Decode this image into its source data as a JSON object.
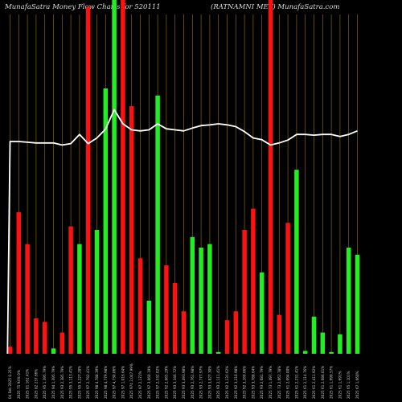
{
  "header": {
    "left": "MunafaSatra  Money Flow  Charts for 520111",
    "right": "(RATNAMNI MET) MunafaSatra.com"
  },
  "colors": {
    "background": "#000000",
    "up": "#22ee22",
    "down": "#ff1111",
    "line": "#ffffff",
    "grid": "#b8860b"
  },
  "chart_data": {
    "type": "bar",
    "title": "",
    "y_scale": "relative money flow (0 = baseline, 100 = top of panel)",
    "series": [
      {
        "name": "money_flow",
        "values": [
          {
            "x": "04 Feb 2025 0.25%",
            "v": 2,
            "color": "down"
          },
          {
            "x": "2025 75 94% 0%",
            "v": 40,
            "color": "down"
          },
          {
            "x": "2025 01 162.41%",
            "v": 31,
            "color": "down"
          },
          {
            "x": "2025 82 237.66%",
            "v": 10,
            "color": "down"
          },
          {
            "x": "2025 95 1,395.79%",
            "v": 9,
            "color": "down"
          },
          {
            "x": "2025 94 1,395.79%",
            "v": 1.5,
            "color": "up"
          },
          {
            "x": "2025 93 2,385.79%",
            "v": 6,
            "color": "down"
          },
          {
            "x": "2025 95 3,113.41%",
            "v": 36,
            "color": "down"
          },
          {
            "x": "2025 95 3,227.28%",
            "v": 31,
            "color": "up"
          },
          {
            "x": "2025 97 2,792.41%",
            "v": 98,
            "color": "down"
          },
          {
            "x": "2025 98 4,788.39%",
            "v": 35,
            "color": "up"
          },
          {
            "x": "2025 98 4,779.98%",
            "v": 75,
            "color": "up"
          },
          {
            "x": "2025 97 4,730.06%",
            "v": 118,
            "color": "up"
          },
          {
            "x": "2025 97 1,016.64%",
            "v": 120,
            "color": "down"
          },
          {
            "x": "2025 974 2,047.99%",
            "v": 70,
            "color": "down"
          },
          {
            "x": "2025 97 2,172%",
            "v": 27,
            "color": "down"
          },
          {
            "x": "2025 97 3,060.19%",
            "v": 15,
            "color": "up"
          },
          {
            "x": "2025 97 2,532.02%",
            "v": 73,
            "color": "up"
          },
          {
            "x": "2025 92 2,065.29%",
            "v": 25,
            "color": "down"
          },
          {
            "x": "2025 93 3,346.72%",
            "v": 20,
            "color": "down"
          },
          {
            "x": "2025 93 3,493.98%",
            "v": 12,
            "color": "down"
          },
          {
            "x": "2025 93 2,761.98%",
            "v": 33,
            "color": "up"
          },
          {
            "x": "2025 93 2,777.97%",
            "v": 30,
            "color": "up"
          },
          {
            "x": "2025 93 3,827.30%",
            "v": 31,
            "color": "up"
          },
          {
            "x": "2025 93 2,111.41%",
            "v": 0.5,
            "color": "up"
          },
          {
            "x": "2025 92 3,131.62%",
            "v": 9.5,
            "color": "down"
          },
          {
            "x": "2025 92 3,210.98%",
            "v": 12,
            "color": "down"
          },
          {
            "x": "2025 92 3,260.66%",
            "v": 35,
            "color": "down"
          },
          {
            "x": "2025 93 3,788.64%",
            "v": 41,
            "color": "down"
          },
          {
            "x": "2025 93 2,681.79%",
            "v": 23,
            "color": "up"
          },
          {
            "x": "2025 73 1,497.79%",
            "v": 110,
            "color": "down"
          },
          {
            "x": "2025 73 2,062.78%",
            "v": 11,
            "color": "down"
          },
          {
            "x": "2025 61 2,094.00%",
            "v": 37,
            "color": "down"
          },
          {
            "x": "2025 61 2,231.41%",
            "v": 52,
            "color": "up"
          },
          {
            "x": "2025 61 2,114.76%",
            "v": 0.8,
            "color": "up"
          },
          {
            "x": "2025 61 2,411.92%",
            "v": 10.5,
            "color": "up"
          },
          {
            "x": "2025 61 2,686.01%",
            "v": 6,
            "color": "up"
          },
          {
            "x": "2025 61 1,990.57%",
            "v": 0.5,
            "color": "up"
          },
          {
            "x": "2025 61 1,691%",
            "v": 5.5,
            "color": "up"
          },
          {
            "x": "2025 65 1,101%",
            "v": 30,
            "color": "up"
          },
          {
            "x": "2025 67 1,660%",
            "v": 28,
            "color": "up"
          }
        ]
      },
      {
        "name": "price_line",
        "values": [
          {
            "i": -0.3,
            "v": 0
          },
          {
            "i": 0,
            "v": 60
          },
          {
            "i": 1,
            "v": 60
          },
          {
            "i": 2,
            "v": 59.8
          },
          {
            "i": 3,
            "v": 59.6
          },
          {
            "i": 4,
            "v": 59.6
          },
          {
            "i": 5,
            "v": 59.6
          },
          {
            "i": 6,
            "v": 59
          },
          {
            "i": 7,
            "v": 59.4
          },
          {
            "i": 8,
            "v": 62
          },
          {
            "i": 9,
            "v": 59.4
          },
          {
            "i": 10,
            "v": 61
          },
          {
            "i": 11,
            "v": 63.5
          },
          {
            "i": 12,
            "v": 69
          },
          {
            "i": 13,
            "v": 65
          },
          {
            "i": 14,
            "v": 63.3
          },
          {
            "i": 15,
            "v": 63
          },
          {
            "i": 16,
            "v": 63.3
          },
          {
            "i": 17,
            "v": 65
          },
          {
            "i": 18,
            "v": 63.6
          },
          {
            "i": 19,
            "v": 63.3
          },
          {
            "i": 20,
            "v": 63
          },
          {
            "i": 21,
            "v": 63.8
          },
          {
            "i": 22,
            "v": 64.5
          },
          {
            "i": 23,
            "v": 64.7
          },
          {
            "i": 24,
            "v": 65
          },
          {
            "i": 25,
            "v": 64.7
          },
          {
            "i": 26,
            "v": 64.2
          },
          {
            "i": 27,
            "v": 62.8
          },
          {
            "i": 28,
            "v": 61
          },
          {
            "i": 29,
            "v": 60.5
          },
          {
            "i": 30,
            "v": 59
          },
          {
            "i": 31,
            "v": 59.6
          },
          {
            "i": 32,
            "v": 60.4
          },
          {
            "i": 33,
            "v": 62
          },
          {
            "i": 34,
            "v": 62
          },
          {
            "i": 35,
            "v": 61.8
          },
          {
            "i": 36,
            "v": 62
          },
          {
            "i": 37,
            "v": 62
          },
          {
            "i": 38,
            "v": 61.4
          },
          {
            "i": 39,
            "v": 62
          },
          {
            "i": 40,
            "v": 63
          }
        ]
      }
    ]
  }
}
